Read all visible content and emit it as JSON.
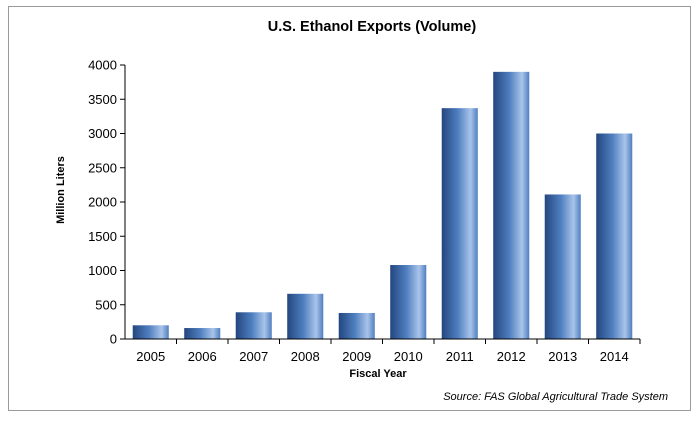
{
  "chart_data": {
    "type": "bar",
    "title": "U.S. Ethanol Exports (Volume)",
    "xlabel": "Fiscal Year",
    "ylabel": "Million Liters",
    "categories": [
      "2005",
      "2006",
      "2007",
      "2008",
      "2009",
      "2010",
      "2011",
      "2012",
      "2013",
      "2014"
    ],
    "values": [
      200,
      160,
      390,
      660,
      380,
      1080,
      3370,
      3900,
      2110,
      3000
    ],
    "ylim": [
      0,
      4000
    ],
    "yticks": [
      0,
      500,
      1000,
      1500,
      2000,
      2500,
      3000,
      3500,
      4000
    ],
    "grid": false,
    "legend": "none",
    "source": "Source: FAS Global Agricultural Trade System",
    "colors": {
      "bar_light": "#a9c4ea",
      "bar_mid": "#4f7fc0",
      "bar_dark": "#23467f",
      "axis": "#000000"
    }
  }
}
